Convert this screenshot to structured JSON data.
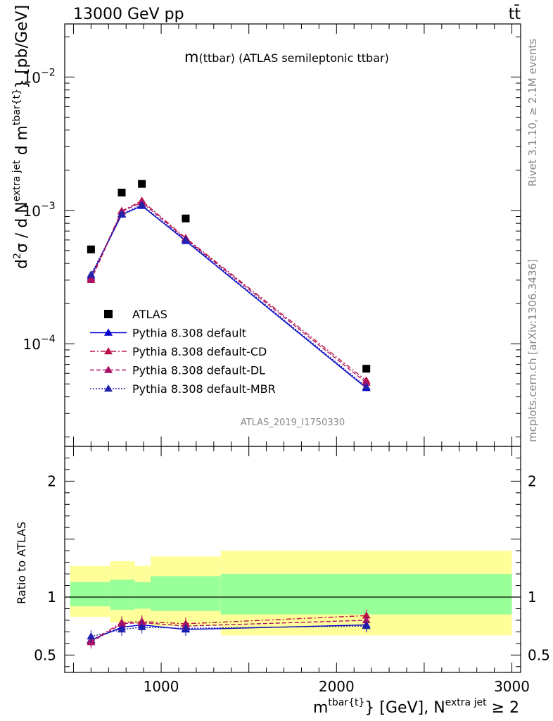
{
  "header": {
    "left": "13000 GeV pp",
    "right": "tt̄"
  },
  "side": {
    "rivet": "Rivet 3.1.10, ≥ 2.1M events",
    "mcplots": "mcplots.cern.ch [arXiv:1306.3436]"
  },
  "chart_data": [
    {
      "type": "scatter",
      "title": "m(ttbar) (ATLAS semileptonic ttbar)",
      "title_main": "m",
      "title_sub": "(ttbar) (ATLAS semileptonic ttbar)",
      "watermark": "ATLAS_2019_I1750330",
      "ylabel": "d²σ / d N^{extra jet} d m^{tbar{t}} [pb/GeV]",
      "yscale": "log",
      "ylim": [
        1.7e-05,
        0.025
      ],
      "xlim": [
        450,
        3050
      ],
      "yticks": [
        {
          "v": 0.0001,
          "mant": "10",
          "exp": "−4"
        },
        {
          "v": 0.001,
          "mant": "10",
          "exp": "−3"
        },
        {
          "v": 0.01,
          "mant": "10",
          "exp": "−2"
        }
      ],
      "legend_placement": "bottom-left",
      "x": [
        600,
        775,
        890,
        1140,
        2170
      ],
      "data": {
        "name": "ATLAS",
        "color": "#000000",
        "values": [
          0.00051,
          0.00136,
          0.00158,
          0.00087,
          6.5e-05
        ]
      },
      "series": [
        {
          "name": "Pythia 8.308 default",
          "color": "#0000cc",
          "dash": "",
          "values": [
            0.00032,
            0.00093,
            0.00108,
            0.00059,
            4.65e-05
          ]
        },
        {
          "name": "Pythia 8.308 default-CD",
          "color": "#bb1144",
          "dash": "7,3,2,3",
          "values": [
            0.00031,
            0.00099,
            0.00118,
            0.00062,
            5.3e-05
          ]
        },
        {
          "name": "Pythia 8.308 default-DL",
          "color": "#aa1166",
          "dash": "6,3",
          "values": [
            0.0003,
            0.00098,
            0.00115,
            0.00061,
            5.1e-05
          ]
        },
        {
          "name": "Pythia 8.308 default-MBR",
          "color": "#2222aa",
          "dash": "2,2",
          "values": [
            0.00033,
            0.00094,
            0.0011,
            0.0006,
            4.75e-05
          ]
        }
      ]
    },
    {
      "type": "line",
      "ylabel": "Ratio to ATLAS",
      "ylim": [
        0.35,
        2.3
      ],
      "xlim": [
        450,
        3050
      ],
      "xticks": [
        1000,
        2000,
        3000
      ],
      "yticks": [
        0.5,
        1,
        2
      ],
      "xlabel_main": "m",
      "xlabel_sup1": "tbar{t}",
      "xlabel_mid": "} [GeV], N",
      "xlabel_sup2": "extra jet",
      "xlabel_end": " ≥ 2",
      "bands": [
        {
          "x0": 480,
          "x1": 710,
          "y_low": 0.83,
          "y_high": 1.27,
          "g_low": 0.92,
          "g_high": 1.13
        },
        {
          "x0": 710,
          "x1": 850,
          "y_low": 0.78,
          "y_high": 1.31,
          "g_low": 0.89,
          "g_high": 1.15
        },
        {
          "x0": 850,
          "x1": 940,
          "y_low": 0.77,
          "y_high": 1.27,
          "g_low": 0.9,
          "g_high": 1.13
        },
        {
          "x0": 940,
          "x1": 1340,
          "y_low": 0.75,
          "y_high": 1.35,
          "g_low": 0.88,
          "g_high": 1.18
        },
        {
          "x0": 1340,
          "x1": 3000,
          "y_low": 0.67,
          "y_high": 1.4,
          "g_low": 0.85,
          "g_high": 1.2
        }
      ],
      "x": [
        600,
        775,
        890,
        1140,
        2170
      ],
      "series": [
        {
          "name": "Pythia 8.308 default",
          "color": "#0000cc",
          "dash": "",
          "values": [
            0.63,
            0.74,
            0.76,
            0.72,
            0.76
          ]
        },
        {
          "name": "Pythia 8.308 default-CD",
          "color": "#bb1144",
          "dash": "7,3,2,3",
          "values": [
            0.62,
            0.78,
            0.79,
            0.77,
            0.84
          ]
        },
        {
          "name": "Pythia 8.308 default-DL",
          "color": "#aa1166",
          "dash": "6,3",
          "values": [
            0.61,
            0.77,
            0.78,
            0.75,
            0.8
          ]
        },
        {
          "name": "Pythia 8.308 default-MBR",
          "color": "#2222aa",
          "dash": "2,2",
          "values": [
            0.66,
            0.72,
            0.74,
            0.73,
            0.75
          ]
        }
      ]
    }
  ]
}
